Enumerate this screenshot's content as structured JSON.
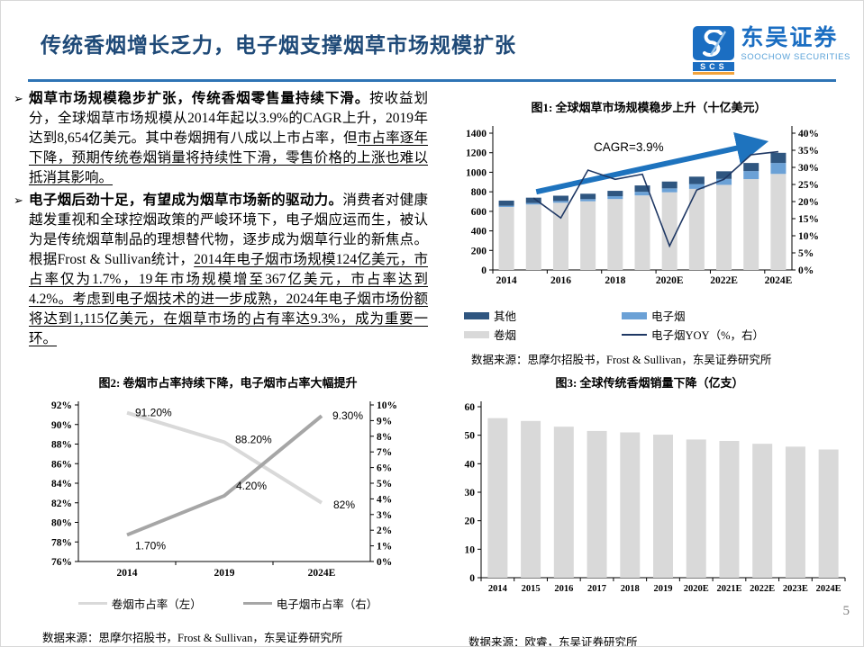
{
  "header": {
    "title": "传统香烟增长乏力，电子烟支撑烟草市场规模扩张",
    "logo": {
      "cn": "东吴证券",
      "en": "SOOCHOW SECURITIES",
      "abbr": "SCS"
    }
  },
  "bullets": [
    {
      "marker": "➢",
      "bold": "烟草市场规模稳步扩张，传统香烟零售量持续下滑。",
      "normal": "按收益划分，全球烟草市场规模从2014年起以3.9%的CAGR上升，2019年达到8,654亿美元。其中卷烟拥有八成以上市占率，但",
      "underline": "市占率逐年下降，预期传统卷烟销量将持续性下滑，零售价格的上涨也难以抵消其影响。"
    },
    {
      "marker": "➢",
      "bold": "电子烟后劲十足，有望成为烟草市场新的驱动力。",
      "normal": "消费者对健康越发重视和全球控烟政策的严峻环境下，电子烟应运而生，被认为是传统烟草制品的理想替代物，逐步成为烟草行业的新焦点。根据Frost & Sullivan统计，",
      "underline": "2014年电子烟市场规模124亿美元，市占率仅为1.7%，19年市场规模增至367亿美元，市占率达到4.2%。考虑到电子烟技术的进一步成熟，2024年电子烟市场份额将达到1,115亿美元，在烟草市场的占有率达9.3%，成为重要一环。"
    }
  ],
  "page_number": "5",
  "chart_data": [
    {
      "type": "bar",
      "subtype": "stacked-bar-with-line",
      "title": "图1: 全球烟草市场规模稳步上升（十亿美元）",
      "categories": [
        "2014",
        "2015",
        "2016",
        "2017",
        "2018",
        "2019",
        "2020E",
        "2021E",
        "2022E",
        "2023E",
        "2024E"
      ],
      "shown_x_ticks": [
        "2014",
        "2016",
        "2018",
        "2020E",
        "2022E",
        "2024E"
      ],
      "series": [
        {
          "name": "卷烟",
          "kind": "bar",
          "color": "#d9d9d9",
          "values": [
            645,
            670,
            688,
            703,
            726,
            763,
            795,
            830,
            871,
            930,
            983
          ]
        },
        {
          "name": "电子烟",
          "kind": "bar",
          "color": "#6ba1d6",
          "values": [
            12,
            15,
            18,
            22,
            29,
            37,
            40,
            49,
            61,
            82,
            112
          ]
        },
        {
          "name": "其他",
          "kind": "bar",
          "color": "#2f5680",
          "values": [
            53,
            55,
            54,
            55,
            55,
            65,
            70,
            76,
            78,
            83,
            104
          ]
        },
        {
          "name": "电子烟YOY（%，右）",
          "kind": "line",
          "axis": "right",
          "color": "#1f3864",
          "values": [
            null,
            21,
            15.2,
            29.2,
            26.5,
            28,
            7,
            23.4,
            26.5,
            33.7,
            34.6
          ]
        }
      ],
      "left_axis": {
        "min": 0,
        "max": 1400,
        "step": 200,
        "suffix": ""
      },
      "right_axis": {
        "min": 0,
        "max": 40,
        "step": 5,
        "suffix": "%"
      },
      "annotation": {
        "text": "CAGR=3.9%",
        "arrow_color": "#1e73be"
      },
      "legend": [
        {
          "label": "其他",
          "color": "#2f5680",
          "kind": "bar"
        },
        {
          "label": "电子烟",
          "color": "#6ba1d6",
          "kind": "bar"
        },
        {
          "label": "卷烟",
          "color": "#d9d9d9",
          "kind": "bar"
        },
        {
          "label": "电子烟YOY（%，右）",
          "color": "#1f3864",
          "kind": "line"
        }
      ],
      "source": "数据来源：思摩尔招股书，Frost & Sullivan，东吴证券研究所"
    },
    {
      "type": "line",
      "title": "图2: 卷烟市占率持续下降，电子烟市占率大幅提升",
      "categories": [
        "2014",
        "2019",
        "2024E"
      ],
      "series": [
        {
          "name": "卷烟市占率（左）",
          "axis": "left",
          "color": "#d9d9d9",
          "values": [
            91.2,
            88.2,
            82
          ],
          "labels": [
            "91.20%",
            "88.20%",
            "82%"
          ]
        },
        {
          "name": "电子烟市占率（右）",
          "axis": "right",
          "color": "#a6a6a6",
          "values": [
            1.7,
            4.2,
            9.3
          ],
          "labels": [
            "1.70%",
            "4.20%",
            "9.30%"
          ]
        }
      ],
      "left_axis": {
        "min": 76,
        "max": 92,
        "step": 2,
        "suffix": "%"
      },
      "right_axis": {
        "min": 0,
        "max": 10,
        "step": 1,
        "suffix": "%"
      },
      "legend": [
        {
          "label": "卷烟市占率（左）",
          "color": "#d9d9d9",
          "kind": "line"
        },
        {
          "label": "电子烟市占率（右）",
          "color": "#a6a6a6",
          "kind": "line"
        }
      ],
      "source": "数据来源：思摩尔招股书，Frost & Sullivan，东吴证券研究所"
    },
    {
      "type": "bar",
      "title": "图3: 全球传统香烟销量下降（亿支）",
      "categories": [
        "2014",
        "2015",
        "2016",
        "2017",
        "2018",
        "2019",
        "2020E",
        "2021E",
        "2022E",
        "2023E",
        "2024E"
      ],
      "values": [
        56,
        55,
        53,
        51.5,
        51,
        50.2,
        48.5,
        48,
        47,
        46,
        45
      ],
      "bar_color": "#d9d9d9",
      "left_axis": {
        "min": 0,
        "max": 60,
        "step": 10,
        "suffix": ""
      },
      "source": "数据来源：欧睿，东吴证券研究所"
    }
  ]
}
